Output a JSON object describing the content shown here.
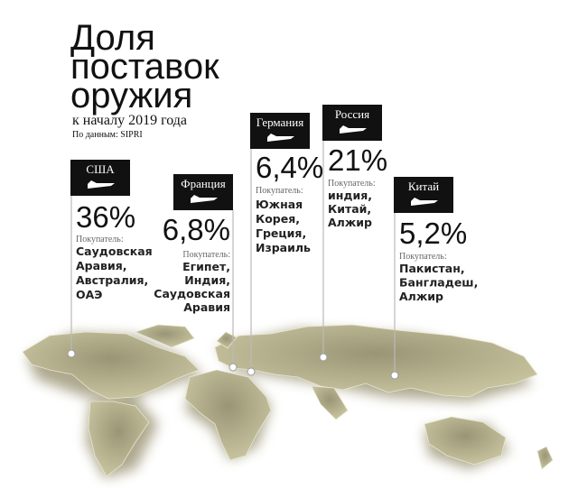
{
  "header": {
    "title_lines": [
      "Доля",
      "поставок",
      "оружия"
    ],
    "subtitle": "к началу 2019 года",
    "source": "По данным: SIPRI"
  },
  "countries": [
    {
      "name": "США",
      "share": "36%",
      "buyer_label": "Покупатель:",
      "buyers": [
        "Саудовская",
        "Аравия,",
        "Австралия,",
        "ОАЭ"
      ]
    },
    {
      "name": "Франция",
      "share": "6,8%",
      "buyer_label": "Покупатель:",
      "buyers": [
        "Египет,",
        "Индия,",
        "Саудовская",
        "Аравия"
      ]
    },
    {
      "name": "Германия",
      "share": "6,4%",
      "buyer_label": "Покупатель:",
      "buyers": [
        "Южная",
        "Корея,",
        "Греция,",
        "Израиль"
      ]
    },
    {
      "name": "Россия",
      "share": "21%",
      "buyer_label": "Покупатель:",
      "buyers": [
        "индия,",
        "Китай,",
        "Алжир"
      ]
    },
    {
      "name": "Китай",
      "share": "5,2%",
      "buyer_label": "Покупатель:",
      "buyers": [
        "Пакистан,",
        "Бангладеш,",
        "Алжир"
      ]
    }
  ]
}
